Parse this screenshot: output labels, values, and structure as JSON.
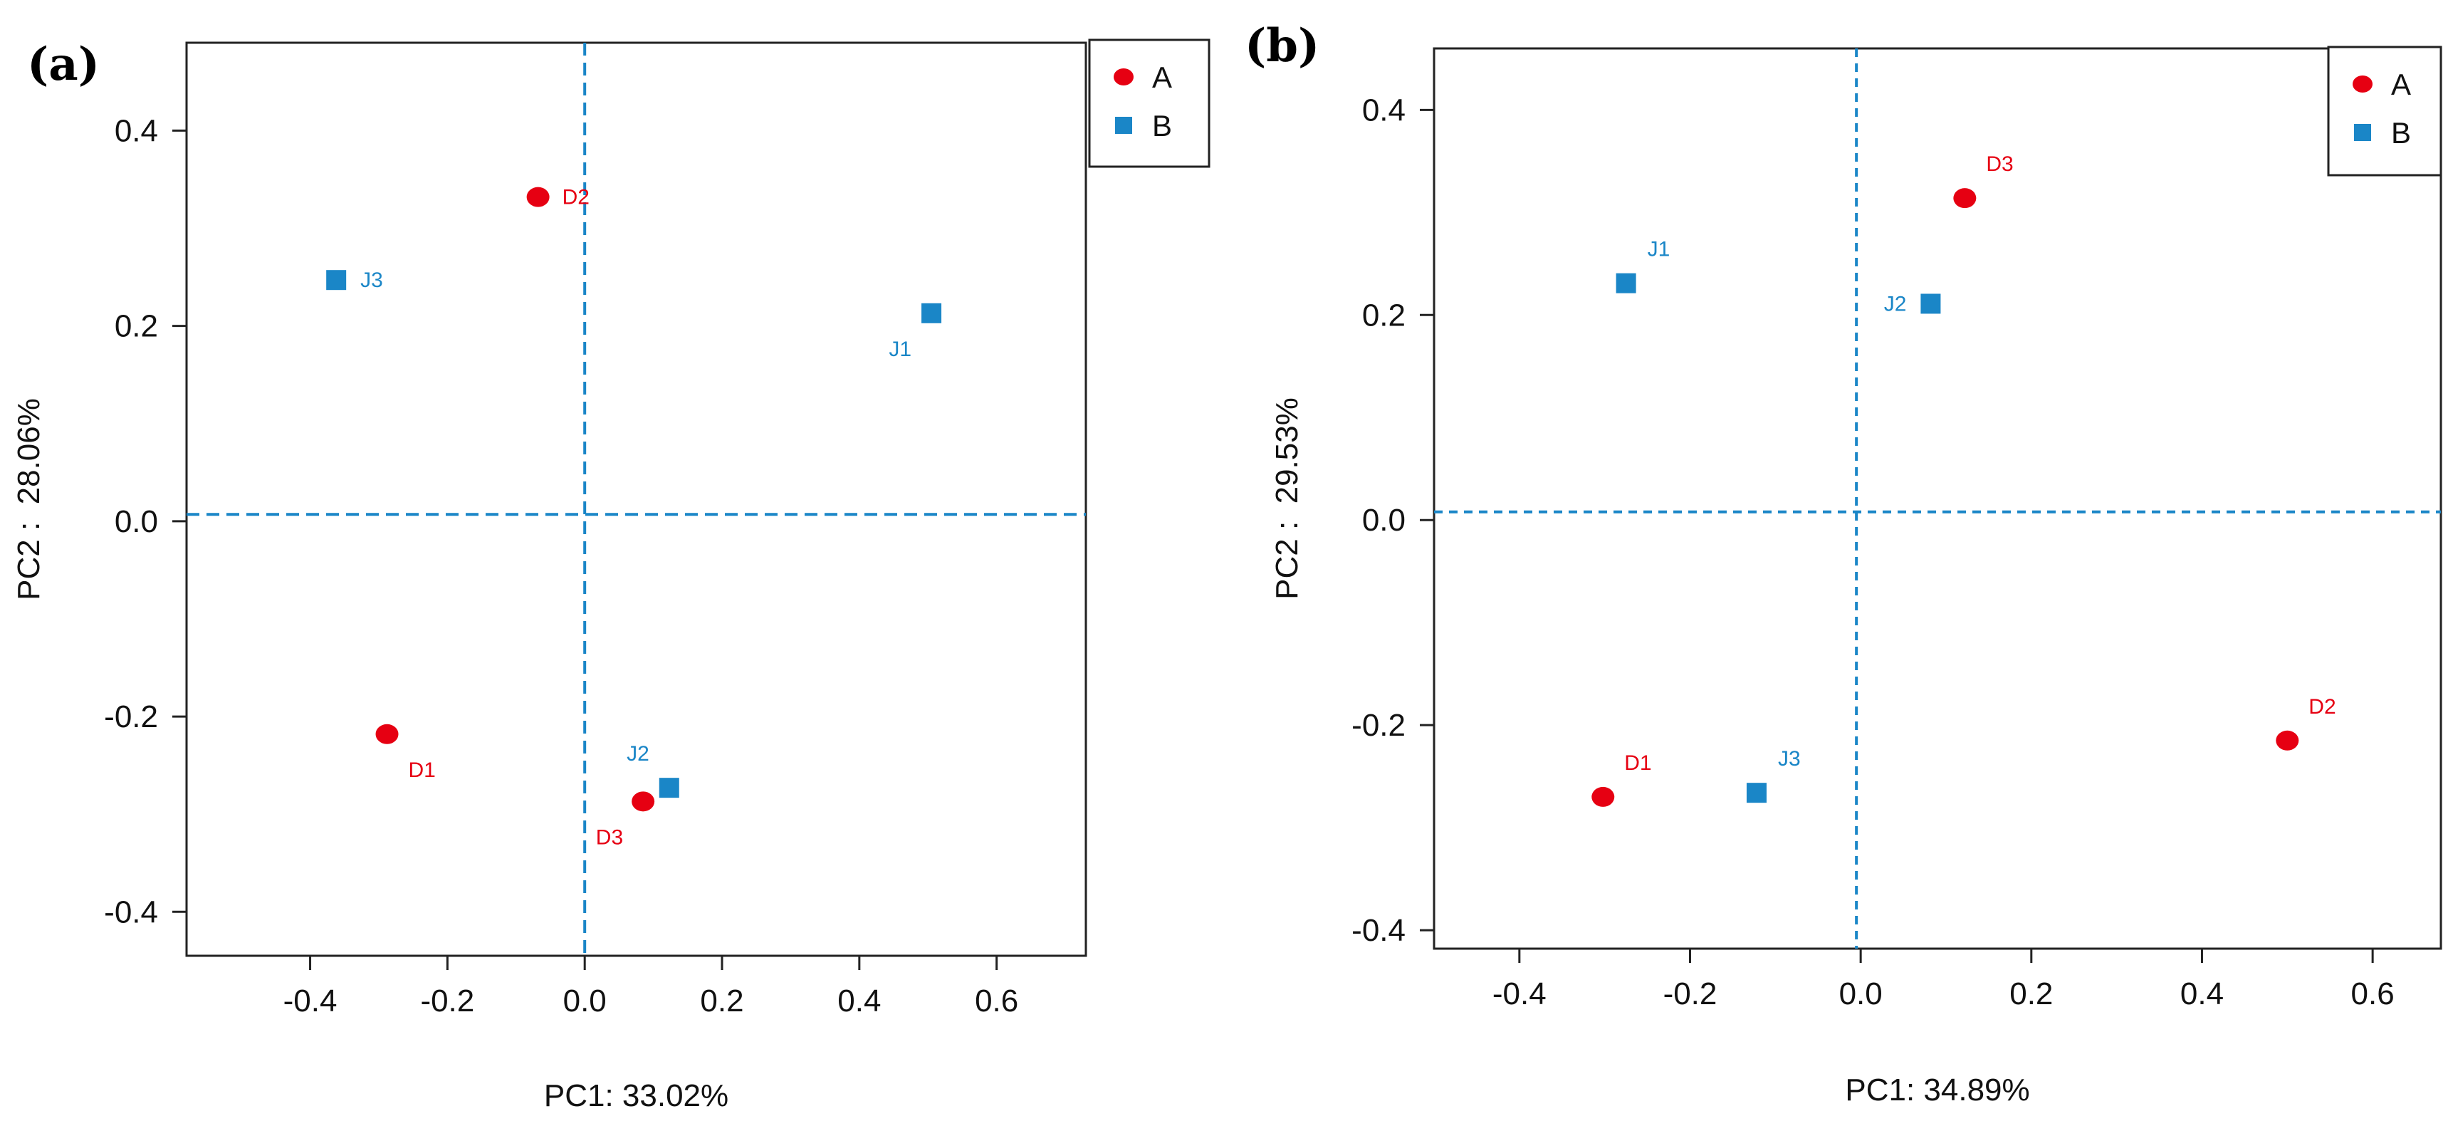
{
  "colors": {
    "A": "#e60012",
    "B": "#1a86c7",
    "refLine": "#1a86c7"
  },
  "chart_data": [
    {
      "type": "scatter",
      "panel_label": "(a)",
      "xlabel": "PC1: 33.02%",
      "ylabel": "PC2 :  28.06%",
      "xlim": [
        -0.58,
        0.73
      ],
      "ylim": [
        -0.445,
        0.49
      ],
      "xticks": [
        -0.4,
        -0.2,
        0.0,
        0.2,
        0.4,
        0.6
      ],
      "xtick_labels": [
        "-0.4",
        "-0.2",
        "0.0",
        "0.2",
        "0.4",
        "0.6"
      ],
      "yticks": [
        -0.4,
        -0.2,
        0.0,
        0.2,
        0.4
      ],
      "ytick_labels": [
        "-0.4",
        "-0.2",
        "0.0",
        "0.2",
        "0.4"
      ],
      "ref_x": 0.0,
      "ref_y": 0.007,
      "legend": {
        "placement": "top-right",
        "entries": [
          {
            "name": "A",
            "marker": "circle"
          },
          {
            "name": "B",
            "marker": "square"
          }
        ]
      },
      "series": [
        {
          "name": "A",
          "marker": "circle",
          "points": [
            {
              "label": "D2",
              "x": -0.068,
              "y": 0.332,
              "label_pos": "right"
            },
            {
              "label": "D1",
              "x": -0.288,
              "y": -0.218,
              "label_pos": "below-right"
            },
            {
              "label": "D3",
              "x": 0.085,
              "y": -0.287,
              "label_pos": "below-left"
            }
          ]
        },
        {
          "name": "B",
          "marker": "square",
          "points": [
            {
              "label": "J3",
              "x": -0.362,
              "y": 0.247,
              "label_pos": "right"
            },
            {
              "label": "J1",
              "x": 0.505,
              "y": 0.213,
              "label_pos": "below-left"
            },
            {
              "label": "J2",
              "x": 0.123,
              "y": -0.273,
              "label_pos": "above-left"
            }
          ]
        }
      ]
    },
    {
      "type": "scatter",
      "panel_label": "(b)",
      "xlabel": "PC1: 34.89%",
      "ylabel": "PC2 :  29.53%",
      "xlim": [
        -0.5,
        0.68
      ],
      "ylim": [
        -0.418,
        0.46
      ],
      "xticks": [
        -0.4,
        -0.2,
        0.0,
        0.2,
        0.4,
        0.6
      ],
      "xtick_labels": [
        "-0.4",
        "-0.2",
        "0.0",
        "0.2",
        "0.4",
        "0.6"
      ],
      "yticks": [
        -0.4,
        -0.2,
        0.0,
        0.2,
        0.4
      ],
      "ytick_labels": [
        "-0.4",
        "-0.2",
        "0.0",
        "0.2",
        "0.4"
      ],
      "ref_x": -0.005,
      "ref_y": 0.008,
      "legend": {
        "placement": "top-right",
        "entries": [
          {
            "name": "A",
            "marker": "circle"
          },
          {
            "name": "B",
            "marker": "square"
          }
        ]
      },
      "series": [
        {
          "name": "A",
          "marker": "circle",
          "points": [
            {
              "label": "D3",
              "x": 0.122,
              "y": 0.314,
              "label_pos": "above-right"
            },
            {
              "label": "D1",
              "x": -0.302,
              "y": -0.27,
              "label_pos": "above-right"
            },
            {
              "label": "D2",
              "x": 0.5,
              "y": -0.215,
              "label_pos": "above-right"
            }
          ]
        },
        {
          "name": "B",
          "marker": "square",
          "points": [
            {
              "label": "J1",
              "x": -0.275,
              "y": 0.231,
              "label_pos": "above-right"
            },
            {
              "label": "J2",
              "x": 0.082,
              "y": 0.211,
              "label_pos": "left"
            },
            {
              "label": "J3",
              "x": -0.122,
              "y": -0.266,
              "label_pos": "above-right"
            }
          ]
        }
      ]
    }
  ]
}
